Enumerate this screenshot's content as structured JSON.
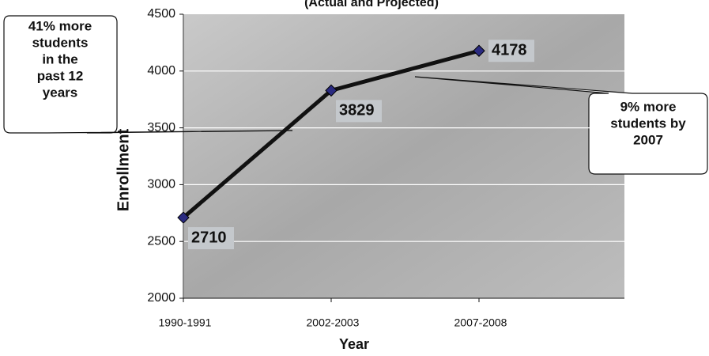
{
  "chart_data": {
    "type": "line",
    "subtitle": "(Actual and Projected)",
    "x_label": "Year",
    "y_label": "Enrollment",
    "categories": [
      "1990-1991",
      "2002-2003",
      "2007-2008"
    ],
    "series": [
      {
        "name": "Enrollment",
        "color": "#111111",
        "values": [
          2710,
          3829,
          4178
        ]
      }
    ],
    "ylim": [
      2000,
      4500
    ],
    "yticks": [
      2000,
      2500,
      3000,
      3500,
      4000,
      4500
    ],
    "grid": true,
    "annotations": [
      {
        "lines": [
          "41% more",
          "students",
          "in the",
          "past 12",
          "years"
        ]
      },
      {
        "lines": [
          "9% more",
          "students by",
          "2007"
        ]
      }
    ]
  }
}
